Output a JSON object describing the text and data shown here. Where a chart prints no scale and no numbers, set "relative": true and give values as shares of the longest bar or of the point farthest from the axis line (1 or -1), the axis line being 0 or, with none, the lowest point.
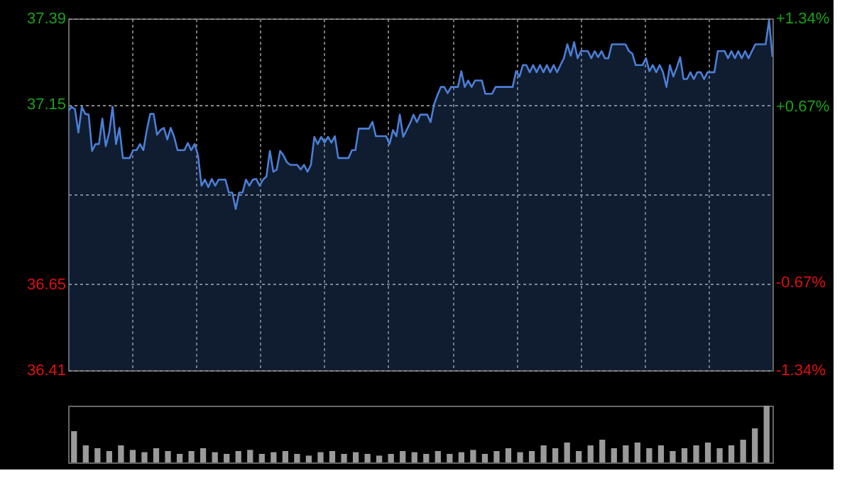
{
  "chart_data": [
    {
      "type": "area",
      "categories": [
        null,
        null,
        null,
        null,
        null,
        null,
        null,
        null,
        null,
        null,
        null,
        null,
        null,
        null,
        null,
        null,
        null,
        null,
        null,
        null,
        null,
        null,
        null,
        null,
        null,
        null,
        null,
        null,
        null,
        null,
        null,
        null,
        null,
        null,
        null,
        null,
        null,
        null,
        null,
        null,
        null,
        null,
        null,
        null,
        null,
        null,
        null,
        null,
        null,
        null,
        null,
        null,
        null,
        null,
        null,
        null,
        null,
        null,
        null,
        null,
        null,
        null,
        null,
        null,
        null,
        null,
        null,
        null,
        null,
        null,
        null,
        null,
        null,
        null,
        null,
        null,
        null,
        null,
        null,
        null,
        null,
        null,
        null,
        null,
        null,
        null,
        null,
        null,
        null,
        null,
        null,
        null,
        null,
        null,
        null,
        null,
        null,
        null,
        null,
        null,
        null,
        null,
        null,
        null,
        null,
        null,
        null,
        null,
        null,
        null,
        null,
        null,
        null,
        null,
        null,
        null,
        null,
        null,
        null,
        null,
        null,
        null,
        null,
        null,
        null,
        null,
        null,
        null,
        null,
        null,
        null,
        null,
        null,
        null,
        null,
        null,
        null,
        null,
        null,
        null,
        null,
        null,
        null,
        null,
        null,
        null,
        null,
        null,
        null,
        null,
        null,
        null,
        null,
        null,
        null,
        null,
        null,
        null,
        null,
        null,
        null,
        null,
        null,
        null,
        null,
        null,
        null,
        null,
        null,
        null,
        null,
        null,
        null,
        null,
        null,
        null,
        null,
        null,
        null,
        null,
        null,
        null,
        null,
        null,
        null,
        null,
        null,
        null,
        null,
        null,
        null,
        null,
        null,
        null,
        null,
        null,
        null,
        null,
        null,
        null,
        null,
        null,
        null,
        null,
        null,
        null,
        null
      ],
      "series": [
        {
          "color": "#4a7fd6",
          "values": [
            37.131,
            37.144,
            37.137,
            37.072,
            37.144,
            37.124,
            37.122,
            37.021,
            37.04,
            37.04,
            37.111,
            37.034,
            37.072,
            37.144,
            37.04,
            37.085,
            37.001,
            37.001,
            37.001,
            37.023,
            37.023,
            37.04,
            37.023,
            37.079,
            37.124,
            37.124,
            37.066,
            37.079,
            37.085,
            37.053,
            37.085,
            37.06,
            37.023,
            37.023,
            37.023,
            37.043,
            37.023,
            37.04,
            37.008,
            36.924,
            36.941,
            36.92,
            36.943,
            36.924,
            36.941,
            36.941,
            36.941,
            36.905,
            36.905,
            36.859,
            36.905,
            36.905,
            36.941,
            36.924,
            36.941,
            36.943,
            36.924,
            36.941,
            36.95,
            37.021,
            36.963,
            36.969,
            37.021,
            37.008,
            36.989,
            36.982,
            36.982,
            36.982,
            36.969,
            36.982,
            36.963,
            36.982,
            37.06,
            37.04,
            37.06,
            37.044,
            37.06,
            37.044,
            37.062,
            37.001,
            37.001,
            37.001,
            37.001,
            37.023,
            37.023,
            37.083,
            37.083,
            37.083,
            37.083,
            37.102,
            37.062,
            37.062,
            37.062,
            37.062,
            37.04,
            37.079,
            37.062,
            37.122,
            37.06,
            37.079,
            37.098,
            37.122,
            37.101,
            37.122,
            37.122,
            37.122,
            37.101,
            37.15,
            37.176,
            37.199,
            37.199,
            37.182,
            37.199,
            37.199,
            37.199,
            37.243,
            37.199,
            37.217,
            37.199,
            37.217,
            37.217,
            37.217,
            37.18,
            37.18,
            37.18,
            37.199,
            37.199,
            37.199,
            37.199,
            37.199,
            37.199,
            37.243,
            37.228,
            37.26,
            37.26,
            37.24,
            37.26,
            37.24,
            37.26,
            37.24,
            37.26,
            37.24,
            37.26,
            37.24,
            37.26,
            37.279,
            37.318,
            37.286,
            37.324,
            37.279,
            37.299,
            37.299,
            37.299,
            37.279,
            37.299,
            37.282,
            37.299,
            37.279,
            37.279,
            37.318,
            37.318,
            37.318,
            37.318,
            37.318,
            37.299,
            37.292,
            37.26,
            37.26,
            37.26,
            37.279,
            37.243,
            37.26,
            37.24,
            37.26,
            37.24,
            37.199,
            37.26,
            37.228,
            37.253,
            37.282,
            37.221,
            37.221,
            37.24,
            37.221,
            37.24,
            37.24,
            37.221,
            37.24,
            37.24,
            37.24,
            37.299,
            37.299,
            37.299,
            37.279,
            37.299,
            37.279,
            37.299,
            37.279,
            37.299,
            37.279,
            37.299,
            37.318,
            37.318,
            37.318,
            37.318,
            37.385,
            37.283
          ]
        }
      ],
      "ylim": [
        36.41,
        37.39
      ],
      "yticks": [
        37.39,
        37.15,
        {
          "value": 36.9,
          "label": null
        },
        36.65,
        36.41
      ],
      "y2lim": [
        -1.34,
        1.34
      ],
      "y2ticks": [
        {
          "value": 1.34,
          "label": "+1.34%"
        },
        {
          "value": 0.67,
          "label": "+0.67%"
        },
        {
          "value": -0.67,
          "label": "-0.67%"
        },
        {
          "value": -1.34,
          "label": "-1.34%"
        }
      ],
      "grid": true,
      "tick_labels": "y"
    },
    {
      "type": "bar",
      "relative": true,
      "tick_labels": false,
      "color": "#9a9a9a",
      "categories": [
        null,
        null,
        null,
        null,
        null,
        null,
        null,
        null,
        null,
        null,
        null,
        null,
        null,
        null,
        null,
        null,
        null,
        null,
        null,
        null,
        null,
        null,
        null,
        null,
        null,
        null,
        null,
        null,
        null,
        null,
        null,
        null,
        null,
        null,
        null,
        null,
        null,
        null,
        null,
        null,
        null,
        null,
        null,
        null,
        null,
        null,
        null,
        null,
        null,
        null,
        null,
        null,
        null,
        null,
        null,
        null,
        null,
        null,
        null,
        null
      ],
      "values": [
        0.55,
        0.3,
        0.25,
        0.2,
        0.3,
        0.22,
        0.18,
        0.25,
        0.2,
        0.15,
        0.2,
        0.25,
        0.18,
        0.15,
        0.2,
        0.22,
        0.15,
        0.18,
        0.2,
        0.15,
        0.12,
        0.18,
        0.2,
        0.15,
        0.18,
        0.15,
        0.12,
        0.15,
        0.2,
        0.18,
        0.15,
        0.2,
        0.15,
        0.18,
        0.22,
        0.15,
        0.2,
        0.25,
        0.18,
        0.2,
        0.3,
        0.25,
        0.35,
        0.2,
        0.3,
        0.4,
        0.25,
        0.3,
        0.35,
        0.25,
        0.3,
        0.2,
        0.25,
        0.3,
        0.35,
        0.25,
        0.3,
        0.4,
        0.6,
        1.0
      ]
    }
  ]
}
